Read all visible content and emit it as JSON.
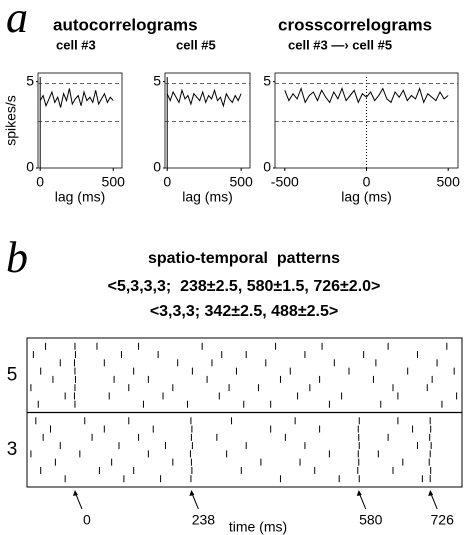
{
  "chart_data": [
    {
      "type": "line",
      "panel": "a",
      "group_title": "autocorrelograms",
      "subtitle": "cell #3",
      "ylabel": "spikes/s",
      "xlabel": "lag (ms)",
      "x": [
        0,
        20,
        40,
        60,
        80,
        100,
        120,
        140,
        160,
        180,
        200,
        220,
        240,
        260,
        280,
        300,
        320,
        340,
        360,
        380,
        400,
        420,
        440,
        460,
        480,
        500
      ],
      "values": [
        3.9,
        4.2,
        3.6,
        4.0,
        4.4,
        3.8,
        4.1,
        3.5,
        4.3,
        3.9,
        4.6,
        3.7,
        4.0,
        4.2,
        3.6,
        4.4,
        3.9,
        4.1,
        3.8,
        4.5,
        3.7,
        4.0,
        4.3,
        3.8,
        4.1,
        3.9
      ],
      "color": "#000000",
      "xlim": [
        -15,
        560
      ],
      "ylim": [
        0,
        5.5
      ],
      "xticks": [
        0,
        500
      ],
      "yticks": [
        0,
        5
      ],
      "reference_lines": [
        4.9,
        2.7
      ]
    },
    {
      "type": "line",
      "subtitle": "cell #5",
      "xlabel": "lag (ms)",
      "x": [
        0,
        20,
        40,
        60,
        80,
        100,
        120,
        140,
        160,
        180,
        200,
        220,
        240,
        260,
        280,
        300,
        320,
        340,
        360,
        380,
        400,
        420,
        440,
        460,
        480,
        500
      ],
      "values": [
        4.3,
        3.9,
        4.4,
        4.1,
        3.8,
        4.5,
        4.0,
        4.2,
        3.7,
        4.3,
        4.1,
        3.9,
        4.4,
        3.8,
        4.2,
        4.0,
        4.5,
        3.9,
        4.1,
        3.6,
        4.3,
        4.0,
        3.8,
        4.2,
        3.9,
        4.3
      ],
      "color": "#000000",
      "xlim": [
        -15,
        560
      ],
      "ylim": [
        0,
        5.5
      ],
      "xticks": [
        0,
        500
      ],
      "yticks": [
        0,
        5
      ],
      "reference_lines": [
        4.9,
        2.7
      ]
    },
    {
      "type": "line",
      "group_title": "crosscorrelograms",
      "subtitle": "cell #3 —› cell #5",
      "xlabel": "lag (ms)",
      "x": [
        -500,
        -475,
        -450,
        -425,
        -400,
        -375,
        -350,
        -325,
        -300,
        -275,
        -250,
        -225,
        -200,
        -175,
        -150,
        -125,
        -100,
        -75,
        -50,
        -25,
        0,
        25,
        50,
        75,
        100,
        125,
        150,
        175,
        200,
        225,
        250,
        275,
        300,
        325,
        350,
        375,
        400,
        425,
        450,
        475,
        500
      ],
      "values": [
        4.5,
        3.9,
        4.3,
        4.0,
        4.6,
        3.8,
        4.2,
        4.4,
        3.9,
        4.5,
        4.1,
        3.8,
        4.4,
        4.0,
        4.6,
        3.9,
        4.2,
        4.5,
        3.8,
        4.3,
        4.1,
        4.4,
        3.9,
        4.2,
        4.6,
        4.0,
        3.8,
        4.4,
        4.1,
        4.5,
        3.9,
        4.2,
        4.0,
        4.6,
        3.8,
        4.3,
        4.1,
        3.9,
        4.4,
        4.0,
        4.2
      ],
      "color": "#000000",
      "xlim": [
        -560,
        560
      ],
      "ylim": [
        0,
        5.5
      ],
      "xticks": [
        -500,
        0,
        500
      ],
      "yticks": [
        0,
        5
      ],
      "reference_lines": [
        4.9,
        2.7
      ]
    },
    {
      "type": "raster",
      "panel": "b",
      "title": "spatio-temporal  patterns",
      "subtitles": [
        "<5,3,3,3;  238±2.5, 580±1.5, 726±2.0>",
        "<3,3,3; 342±2.5, 488±2.5>"
      ],
      "xlabel": "time (ms)",
      "xlim": [
        -98,
        791
      ],
      "xticks": [
        0,
        238,
        580,
        726
      ],
      "color": "#000000",
      "units": [
        {
          "name": "5",
          "trials": [
            [
              -60,
              0,
              45,
              130,
              260,
              410,
              505,
              640,
              760
            ],
            [
              -85,
              1,
              95,
              170,
              300,
              350,
              470,
              590,
              700
            ],
            [
              -30,
              -1,
              60,
              210,
              280,
              390,
              530,
              615,
              740
            ],
            [
              -70,
              0,
              120,
              240,
              330,
              440,
              560,
              680,
              775
            ],
            [
              -45,
              1,
              80,
              150,
              270,
              420,
              500,
              610,
              730
            ],
            [
              -90,
              0,
              110,
              200,
              315,
              375,
              480,
              650,
              720
            ],
            [
              -20,
              -1,
              70,
              180,
              295,
              455,
              545,
              660,
              780
            ],
            [
              -75,
              0,
              140,
              230,
              345,
              400,
              520,
              625,
              750
            ]
          ]
        },
        {
          "name": "3",
          "trials": [
            [
              -80,
              20,
              110,
              237,
              320,
              450,
              581,
              660,
              726
            ],
            [
              -50,
              60,
              160,
              239,
              400,
              500,
              579,
              690,
              727
            ],
            [
              -65,
              35,
              130,
              238,
              290,
              430,
              580,
              640,
              725
            ],
            [
              -30,
              90,
              185,
              240,
              350,
              470,
              581,
              700,
              728
            ],
            [
              -90,
              10,
              150,
              236,
              310,
              520,
              579,
              620,
              726
            ],
            [
              -40,
              75,
              200,
              238,
              380,
              460,
              580,
              670,
              724
            ],
            [
              -70,
              50,
              120,
              239,
              340,
              490,
              578,
              650,
              727
            ],
            [
              -20,
              100,
              175,
              237,
              420,
              540,
              581,
              710,
              726
            ]
          ]
        }
      ]
    }
  ]
}
